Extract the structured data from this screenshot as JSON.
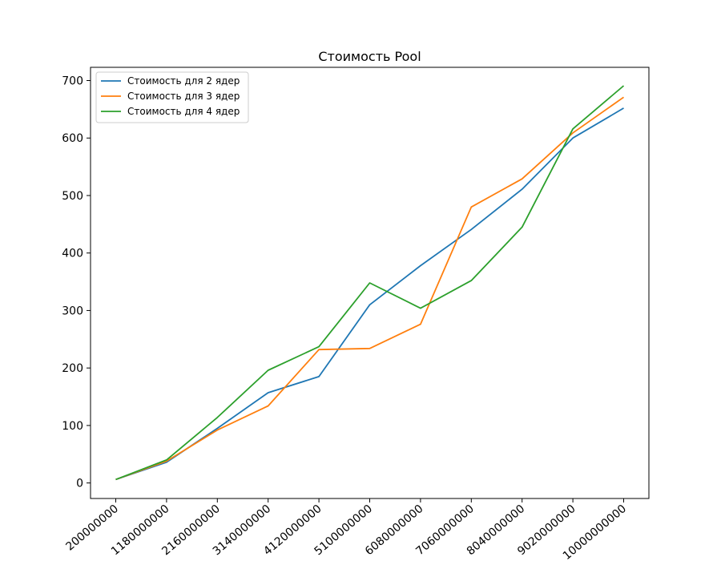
{
  "chart_data": {
    "type": "line",
    "title": "Стоимость Pool",
    "xlabel": "",
    "ylabel": "",
    "categories": [
      "200000000",
      "1180000000",
      "2160000000",
      "3140000000",
      "4120000000",
      "5100000000",
      "6080000000",
      "7060000000",
      "8040000000",
      "9020000000",
      "10000000000"
    ],
    "ylim": [
      -27,
      723
    ],
    "yticks": [
      0,
      100,
      200,
      300,
      400,
      500,
      600,
      700
    ],
    "grid": false,
    "legend_position": "top-left",
    "series": [
      {
        "name": "Стоимость для 2 ядер",
        "color": "#1f77b4",
        "values": [
          6,
          36,
          95,
          157,
          185,
          310,
          378,
          441,
          511,
          600,
          652
        ]
      },
      {
        "name": "Стоимость для 3 ядер",
        "color": "#ff7f0e",
        "values": [
          6,
          38,
          92,
          134,
          232,
          234,
          276,
          480,
          529,
          609,
          671
        ]
      },
      {
        "name": "Стоимость для 4 ядер",
        "color": "#2ca02c",
        "values": [
          6,
          40,
          114,
          196,
          237,
          348,
          304,
          352,
          445,
          616,
          691
        ]
      }
    ]
  }
}
